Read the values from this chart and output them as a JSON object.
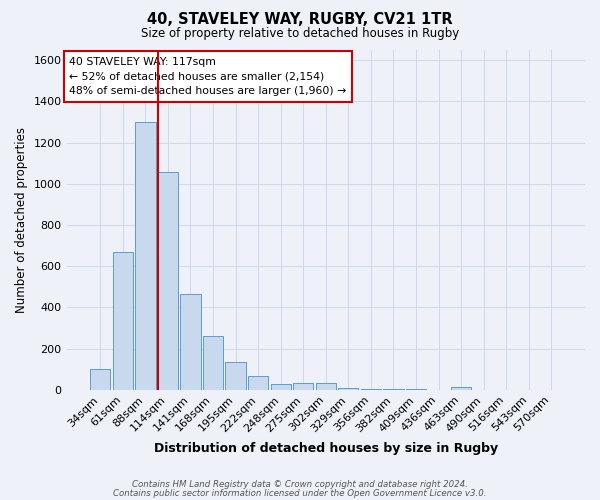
{
  "title": "40, STAVELEY WAY, RUGBY, CV21 1TR",
  "subtitle": "Size of property relative to detached houses in Rugby",
  "xlabel": "Distribution of detached houses by size in Rugby",
  "ylabel": "Number of detached properties",
  "bar_labels": [
    "34sqm",
    "61sqm",
    "88sqm",
    "114sqm",
    "141sqm",
    "168sqm",
    "195sqm",
    "222sqm",
    "248sqm",
    "275sqm",
    "302sqm",
    "329sqm",
    "356sqm",
    "382sqm",
    "409sqm",
    "436sqm",
    "463sqm",
    "490sqm",
    "516sqm",
    "543sqm",
    "570sqm"
  ],
  "bar_values": [
    100,
    670,
    1300,
    1060,
    465,
    260,
    133,
    68,
    28,
    32,
    32,
    8,
    5,
    5,
    5,
    0,
    15,
    0,
    0,
    0,
    0
  ],
  "bar_color": "#c9d9ed",
  "bar_edge_color": "#5b9bd5",
  "red_line_color": "#cc0000",
  "annotation_text": "40 STAVELEY WAY: 117sqm\n← 52% of detached houses are smaller (2,154)\n48% of semi-detached houses are larger (1,960) →",
  "annotation_box_color": "#ffffff",
  "annotation_box_edge": "#cc0000",
  "ylim": [
    0,
    1650
  ],
  "yticks": [
    0,
    200,
    400,
    600,
    800,
    1000,
    1200,
    1400,
    1600
  ],
  "grid_color": "#c8d4e8",
  "bg_color": "#eef2f8",
  "footer_line1": "Contains HM Land Registry data © Crown copyright and database right 2024.",
  "footer_line2": "Contains public sector information licensed under the Open Government Licence v3.0."
}
